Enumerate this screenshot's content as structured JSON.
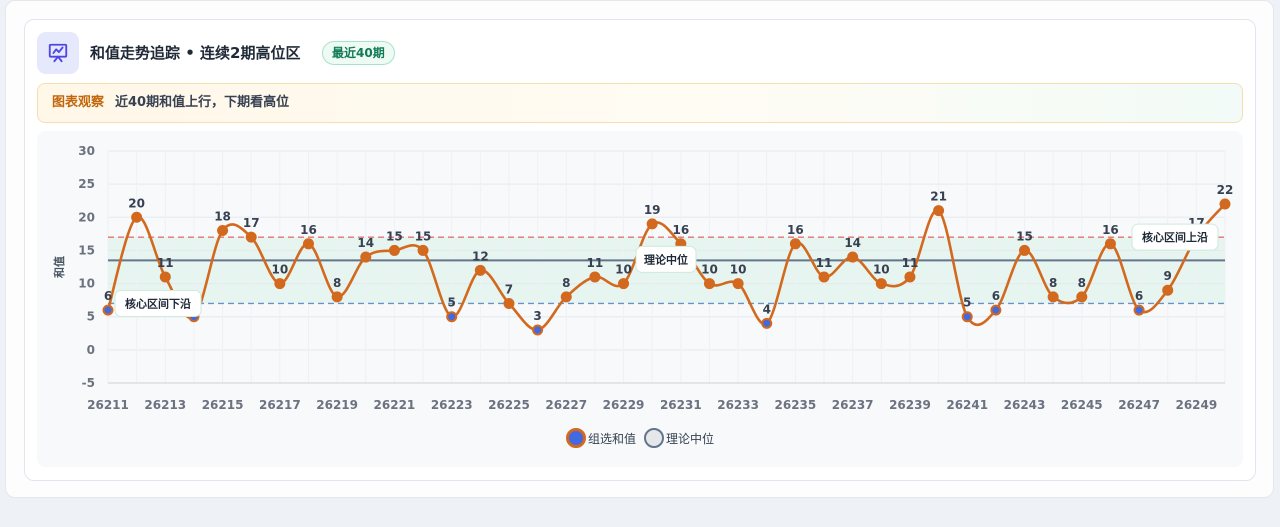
{
  "header": {
    "title": "和值走势追踪 • 连续2期高位区",
    "badge": "最近40期"
  },
  "observation": {
    "label": "图表观察",
    "text": "近40期和值上行，下期看高位"
  },
  "colors": {
    "series": "#d2691e",
    "point_fill_low": "#4169e1",
    "median_line": "#64748b",
    "upper_band": "#e57373",
    "lower_band": "#6b93c9",
    "band_fill": "#e3f4ec",
    "accent_icon": "#4f46e5"
  },
  "icons": {
    "header": "presentation-chart-icon"
  },
  "chart_data": {
    "type": "line",
    "ylabel": "和值",
    "xlabel": "",
    "ylim": [
      -5,
      30
    ],
    "yticks": [
      -5,
      0,
      5,
      10,
      15,
      20,
      25,
      30
    ],
    "grid": true,
    "legend_position": "bottom-center",
    "x": [
      "26211",
      "26212",
      "26213",
      "26214",
      "26215",
      "26216",
      "26217",
      "26218",
      "26219",
      "26220",
      "26221",
      "26222",
      "26223",
      "26224",
      "26225",
      "26226",
      "26227",
      "26228",
      "26229",
      "26230",
      "26231",
      "26232",
      "26233",
      "26234",
      "26235",
      "26236",
      "26237",
      "26238",
      "26239",
      "26240",
      "26241",
      "26242",
      "26243",
      "26244",
      "26245",
      "26246",
      "26247",
      "26248",
      "26249",
      "26250"
    ],
    "xtick_labels": [
      "26211",
      "26213",
      "26215",
      "26217",
      "26219",
      "26221",
      "26223",
      "26225",
      "26227",
      "26229",
      "26231",
      "26233",
      "26235",
      "26237",
      "26239",
      "26241",
      "26243",
      "26245",
      "26247",
      "26249"
    ],
    "series": [
      {
        "name": "组选和值",
        "values": [
          6,
          20,
          11,
          5,
          18,
          17,
          10,
          16,
          8,
          14,
          15,
          15,
          5,
          12,
          7,
          3,
          8,
          11,
          10,
          19,
          16,
          10,
          10,
          4,
          16,
          11,
          14,
          10,
          11,
          21,
          5,
          6,
          15,
          8,
          8,
          16,
          6,
          9,
          17,
          22
        ]
      },
      {
        "name": "理论中位",
        "value": 13.5
      }
    ],
    "reference_lines": {
      "upper": 17,
      "lower": 7
    },
    "annotations": [
      {
        "text": "理论中位"
      },
      {
        "text": "核心区间下沿"
      },
      {
        "text": "核心区间上沿"
      }
    ]
  }
}
